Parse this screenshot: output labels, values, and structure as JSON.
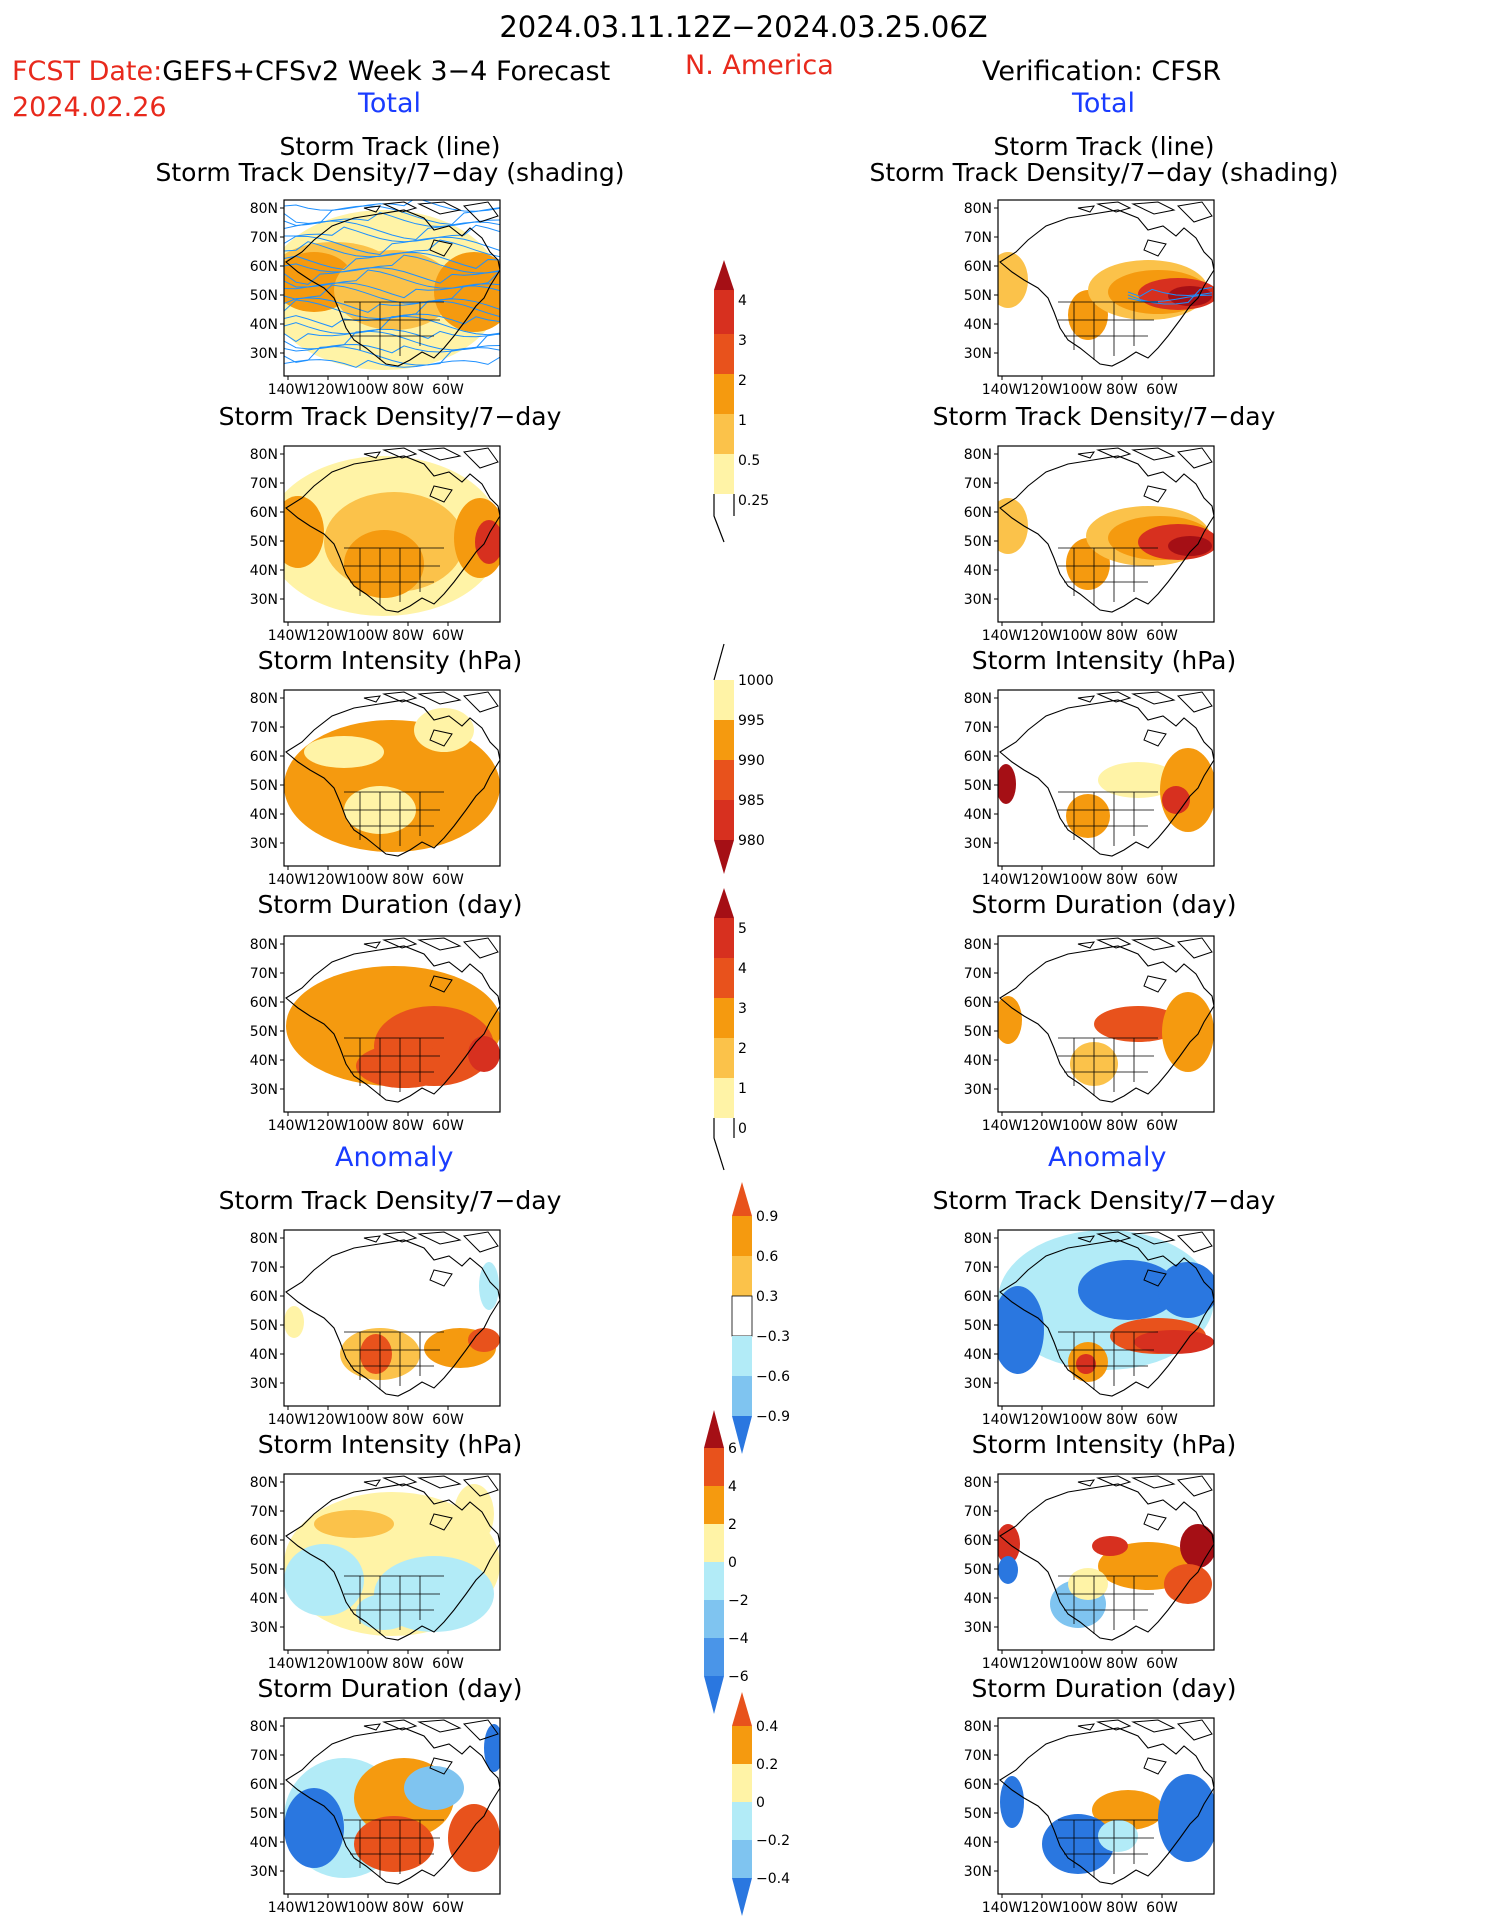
{
  "header": {
    "period": "2024.03.11.12Z−2024.03.25.06Z",
    "fcst_prefix": "FCST Date:",
    "forecast_name": "GEFS+CFSv2 Week 3−4 Forecast",
    "fcst_date": "2024.02.26",
    "region": "N. America",
    "verification": "Verification: CFSR",
    "total_left": "Total",
    "total_right": "Total",
    "anomaly_left": "Anomaly",
    "anomaly_right": "Anomaly"
  },
  "panels": {
    "p1_title_a": "Storm Track (line)",
    "p1_title_b": "Storm Track Density/7−day (shading)",
    "p2_title": "Storm Track Density/7−day",
    "p3_title": "Storm Intensity (hPa)",
    "p4_title": "Storm Duration (day)",
    "p5_title": "Storm Track Density/7−day",
    "p6_title": "Storm Intensity (hPa)",
    "p7_title": "Storm Duration (day)"
  },
  "axes": {
    "lat_labels": [
      "80N",
      "70N",
      "60N",
      "50N",
      "40N",
      "30N"
    ],
    "lon_labels": [
      "140W",
      "120W",
      "100W",
      "80W",
      "60W"
    ]
  },
  "colorbars": {
    "density_total": [
      "4",
      "3",
      "2",
      "1",
      "0.5",
      "0.25"
    ],
    "intensity_total": [
      "1000",
      "995",
      "990",
      "985",
      "980"
    ],
    "duration_total": [
      "5",
      "4",
      "3",
      "2",
      "1",
      "0"
    ],
    "density_anom": [
      "0.9",
      "0.6",
      "0.3",
      "−0.3",
      "−0.6",
      "−0.9"
    ],
    "intensity_anom": [
      "6",
      "4",
      "2",
      "0",
      "−2",
      "−4",
      "−6"
    ],
    "duration_anom": [
      "0.4",
      "0.2",
      "0",
      "−0.2",
      "−0.4"
    ]
  },
  "colors": {
    "dark_red": "#a50f15",
    "red": "#d7301f",
    "orange_red": "#e8521c",
    "orange": "#f59a0f",
    "light_orange": "#fbc24a",
    "pale_yellow": "#fff3a6",
    "light_blue": "#b2ebf7",
    "mid_blue": "#7fc4f0",
    "blue": "#2a77e0",
    "dark_blue": "#1557c8",
    "track_line": "#1e90ff"
  }
}
